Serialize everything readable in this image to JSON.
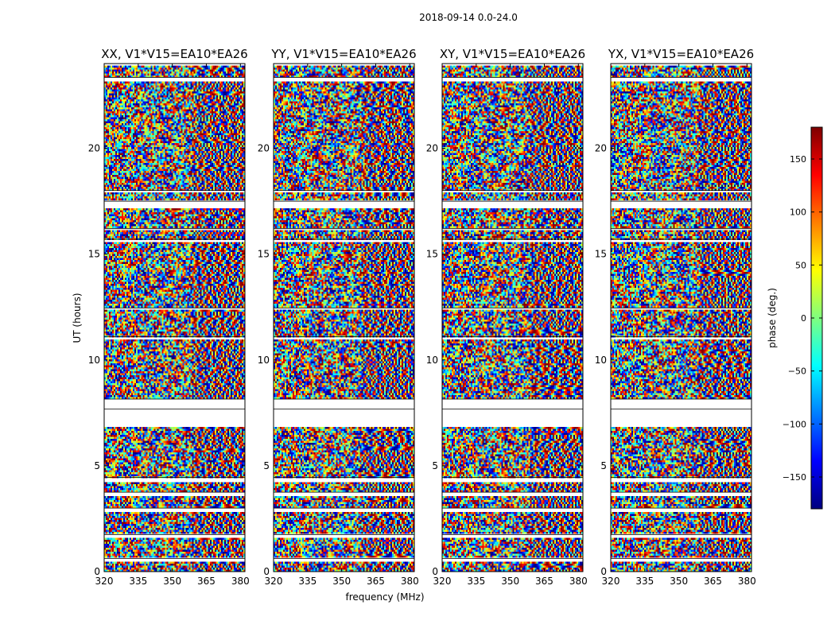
{
  "figure": {
    "suptitle": "2018-09-14 0.0-24.0",
    "xlabel": "frequency (MHz)",
    "ylabel": "UT (hours)"
  },
  "chart_data": {
    "type": "heatmap",
    "x": {
      "label": "frequency (MHz)",
      "range": [
        320,
        382
      ],
      "ticks": [
        320,
        335,
        350,
        365,
        380
      ]
    },
    "y": {
      "label": "UT (hours)",
      "range": [
        0,
        24
      ],
      "ticks": [
        0,
        5,
        10,
        15,
        20
      ]
    },
    "panels": [
      {
        "title": "XX, V1*V15=EA10*EA26",
        "seed": 11
      },
      {
        "title": "YY, V1*V15=EA10*EA26",
        "seed": 23
      },
      {
        "title": "XY, V1*V15=EA10*EA26",
        "seed": 37
      },
      {
        "title": "YX, V1*V15=EA10*EA26",
        "seed": 53
      }
    ],
    "no_data_hours": [
      [
        6.85,
        8.15
      ],
      [
        4.25,
        4.45
      ],
      [
        3.55,
        3.75
      ],
      [
        2.85,
        3.0
      ],
      [
        1.6,
        1.75
      ],
      [
        0.5,
        0.62
      ],
      [
        7.55,
        7.68
      ],
      [
        11.0,
        11.1
      ],
      [
        12.35,
        12.45
      ],
      [
        15.55,
        15.7
      ],
      [
        16.1,
        16.2
      ],
      [
        17.2,
        17.5
      ],
      [
        17.9,
        18.0
      ],
      [
        23.2,
        23.35
      ],
      [
        23.9,
        24.0
      ]
    ],
    "colorbar": {
      "label": "phase (deg.)",
      "range": [
        -180,
        180
      ],
      "ticks": [
        -150,
        -100,
        -50,
        0,
        50,
        100,
        150
      ],
      "tick_labels": [
        "−150",
        "−100",
        "−50",
        "0",
        "50",
        "100",
        "150"
      ],
      "colormap": "jet",
      "colors": [
        "#00007f",
        "#0000ff",
        "#007fff",
        "#00ffff",
        "#7fff7f",
        "#ffff00",
        "#ff7f00",
        "#ff0000",
        "#7f0000"
      ]
    }
  }
}
